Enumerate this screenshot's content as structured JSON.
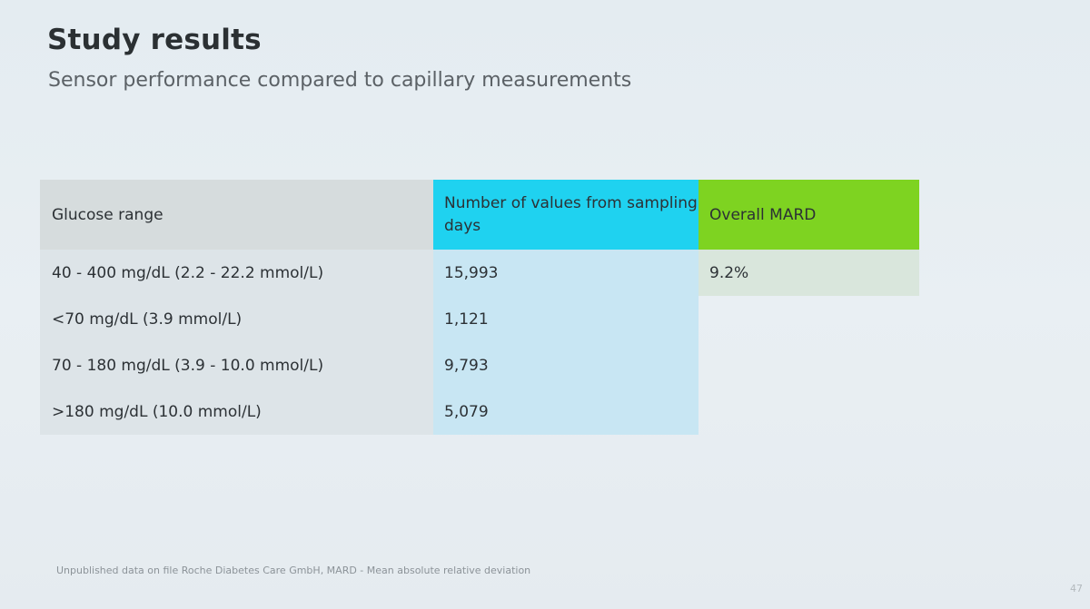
{
  "slide": {
    "title": "Study results",
    "subtitle": "Sensor performance compared to capillary measurements",
    "footnote": "Unpublished data on file Roche Diabetes Care GmbH, MARD - Mean absolute relative deviation",
    "page_number": "47"
  },
  "table": {
    "headers": {
      "range": "Glucose range",
      "values": "Number of values from sampling days",
      "mard": "Overall MARD"
    },
    "rows": [
      {
        "range": "40 - 400 mg/dL (2.2 - 22.2 mmol/L)",
        "values": "15,993",
        "mard": "9.2%"
      },
      {
        "range": "<70 mg/dL (3.9 mmol/L)",
        "values": "1,121",
        "mard": ""
      },
      {
        "range": "70 - 180 mg/dL (3.9 - 10.0 mmol/L)",
        "values": "9,793",
        "mard": ""
      },
      {
        "range": ">180 mg/dL (10.0 mmol/L)",
        "values": "5,079",
        "mard": ""
      }
    ]
  },
  "colors": {
    "values_header": "#1fd2f0",
    "mard_header": "#7ed321"
  }
}
